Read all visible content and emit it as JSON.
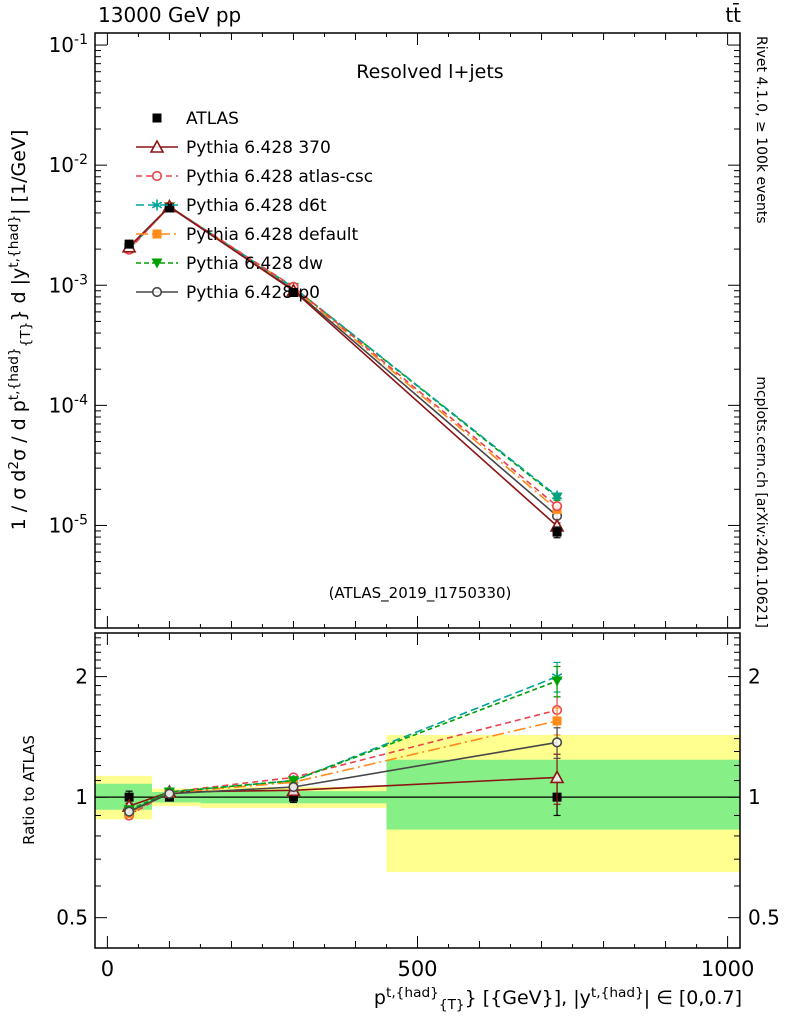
{
  "header": {
    "left": "13000 GeV pp",
    "right": "tt̄"
  },
  "side_notes": {
    "top": "Rivet 4.1.0, ≥ 100k events",
    "bottom": "mcplots.cern.ch [arXiv:2401.10621]"
  },
  "chart_data": {
    "type": "line",
    "panel_label": "Resolved l+jets",
    "watermark": "(ATLAS_2019_I1750330)",
    "ylabel_ratio": "Ratio to ATLAS",
    "ylabel_main_segments": [
      {
        "t": "1 / σ d"
      },
      {
        "t": "2",
        "pos": "sup"
      },
      {
        "t": "σ / d p"
      },
      {
        "t": "t,{had}",
        "pos": "sup"
      },
      {
        "t": "{T}",
        "pos": "sub"
      },
      {
        "t": "} d |y"
      },
      {
        "t": "t,{had}",
        "pos": "sup"
      },
      {
        "t": "| [1/GeV]"
      }
    ],
    "xlabel_segments": [
      {
        "t": "p"
      },
      {
        "t": "t,{had}",
        "pos": "sup"
      },
      {
        "t": "{T}",
        "pos": "sub"
      },
      {
        "t": "} [{GeV}], |y"
      },
      {
        "t": "t,{had}",
        "pos": "sup"
      },
      {
        "t": "| ∈ [0,0.7]"
      }
    ],
    "x": [
      35,
      100,
      300,
      725
    ],
    "xlim": [
      -20,
      1020
    ],
    "xticks": [
      0,
      500,
      1000
    ],
    "x_minor_step": 100,
    "x_sub_step": 50,
    "ylim_main": [
      1.4e-06,
      0.126
    ],
    "yticks_main_exponents": [
      -1,
      -2,
      -3,
      -4,
      -5
    ],
    "ylim_ratio": [
      0.42,
      2.57
    ],
    "yticks_ratio": [
      0.5,
      1,
      2
    ],
    "series": [
      {
        "name": "ATLAS",
        "color": "#000000",
        "marker": "square-filled",
        "line_dash": "none",
        "values": [
          0.0022,
          0.0044,
          0.00087,
          8.8e-06
        ],
        "yerr": [
          8e-05,
          0.0001,
          3e-05,
          9e-07
        ],
        "ratio": [
          1,
          1,
          1,
          1
        ],
        "ratio_err": [
          0.035,
          0.02,
          0.03,
          0.1
        ]
      },
      {
        "name": "Pythia 6.428 370",
        "color": "#8b1414",
        "marker": "triangle-open",
        "line_dash": "",
        "values": [
          0.00209,
          0.00452,
          0.0009,
          9.9e-06
        ],
        "yerr": [
          0,
          0,
          0,
          6e-07
        ],
        "ratio": [
          0.95,
          1.03,
          1.04,
          1.12
        ],
        "ratio_err": [
          0.015,
          0.008,
          0.015,
          0.16
        ]
      },
      {
        "name": "Pythia 6.428 atlas-csc",
        "color": "#e8434e",
        "marker": "circle-open",
        "line_dash": "6 4",
        "values": [
          0.00198,
          0.00452,
          0.00097,
          1.45e-05
        ],
        "yerr": [
          0,
          0,
          0,
          8e-07
        ],
        "ratio": [
          0.9,
          1.03,
          1.12,
          1.65
        ],
        "ratio_err": [
          0.012,
          0.008,
          0.015,
          0.13
        ]
      },
      {
        "name": "Pythia 6.428 d6t",
        "color": "#00a398",
        "marker": "star",
        "line_dash": "8 4",
        "values": [
          0.00202,
          0.00453,
          0.00096,
          1.76e-05
        ],
        "yerr": [
          0,
          0,
          0,
          1e-06
        ],
        "ratio": [
          0.92,
          1.03,
          1.1,
          2.0
        ],
        "ratio_err": [
          0.012,
          0.008,
          0.015,
          0.17
        ]
      },
      {
        "name": "Pythia 6.428 default",
        "color": "#ff8c1a",
        "marker": "square-filled",
        "line_dash": "12 4 2 4",
        "values": [
          0.002,
          0.00451,
          0.00095,
          1.36e-05
        ],
        "yerr": [
          0,
          0,
          0,
          8e-07
        ],
        "ratio": [
          0.91,
          1.025,
          1.09,
          1.55
        ],
        "ratio_err": [
          0.012,
          0.008,
          0.015,
          0.12
        ]
      },
      {
        "name": "Pythia 6.428 dw",
        "color": "#00a000",
        "marker": "triangle-down-filled",
        "line_dash": "5 3",
        "values": [
          0.00204,
          0.00453,
          0.00096,
          1.72e-05
        ],
        "yerr": [
          0,
          0,
          0,
          1e-06
        ],
        "ratio": [
          0.93,
          1.03,
          1.1,
          1.95
        ],
        "ratio_err": [
          0.012,
          0.008,
          0.015,
          0.17
        ]
      },
      {
        "name": "Pythia 6.428 p0",
        "color": "#474747",
        "marker": "circle-open",
        "line_dash": "",
        "values": [
          0.00202,
          0.00448,
          0.00092,
          1.2e-05
        ],
        "yerr": [
          0,
          0,
          0,
          7e-07
        ],
        "ratio": [
          0.92,
          1.02,
          1.06,
          1.37
        ],
        "ratio_err": [
          0.012,
          0.008,
          0.015,
          0.12
        ]
      }
    ],
    "bands": {
      "yellow_color": "#ffff8f",
      "green_color": "#86ef86",
      "bins": [
        [
          -20,
          72
        ],
        [
          72,
          150
        ],
        [
          150,
          450
        ],
        [
          450,
          1020
        ]
      ],
      "yellow": [
        [
          0.88,
          1.13
        ],
        [
          0.95,
          1.05
        ],
        [
          0.94,
          1.06
        ],
        [
          0.65,
          1.43
        ]
      ],
      "green": [
        [
          0.93,
          1.08
        ],
        [
          0.97,
          1.03
        ],
        [
          0.965,
          1.035
        ],
        [
          0.83,
          1.24
        ]
      ]
    }
  }
}
